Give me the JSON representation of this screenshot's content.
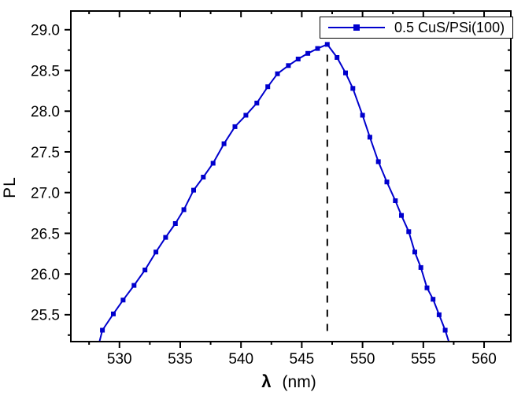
{
  "figure": {
    "background": "#ffffff",
    "axis_color": "#000000"
  },
  "chart_data": {
    "type": "line",
    "title": "",
    "xlabel_symbol": "λ",
    "xlabel_unit": "(nm)",
    "ylabel": "PL",
    "xlim": [
      526.0,
      562.2
    ],
    "ylim": [
      25.17,
      29.23
    ],
    "x_major_ticks": [
      530,
      535,
      540,
      545,
      550,
      555,
      560
    ],
    "x_minor_step": 2.5,
    "y_major_ticks": [
      25.5,
      26.0,
      26.5,
      27.0,
      27.5,
      28.0,
      28.5,
      29.0
    ],
    "y_minor_step": 0.25,
    "grid": false,
    "legend_position": "top-right",
    "series": [
      {
        "name": "0.5 CuS/PSi(100)",
        "color": "#0000CD",
        "marker": "square",
        "marker_size": 6,
        "line_width": 2,
        "x": [
          528.2,
          528.6,
          529.5,
          530.3,
          531.2,
          532.1,
          533.0,
          533.8,
          534.6,
          535.3,
          536.1,
          536.9,
          537.7,
          538.6,
          539.5,
          540.4,
          541.3,
          542.2,
          543.0,
          543.9,
          544.7,
          545.5,
          546.3,
          547.1,
          547.9,
          548.6,
          549.2,
          550.0,
          550.6,
          551.3,
          552.0,
          552.7,
          553.2,
          553.8,
          554.3,
          554.8,
          555.3,
          555.8,
          556.3,
          556.8,
          557.2
        ],
        "y": [
          25.08,
          25.31,
          25.51,
          25.68,
          25.86,
          26.05,
          26.27,
          26.45,
          26.62,
          26.79,
          27.03,
          27.19,
          27.36,
          27.6,
          27.81,
          27.95,
          28.1,
          28.3,
          28.46,
          28.56,
          28.64,
          28.71,
          28.77,
          28.82,
          28.66,
          28.47,
          28.28,
          27.95,
          27.68,
          27.38,
          27.13,
          26.9,
          26.72,
          26.52,
          26.27,
          26.08,
          25.83,
          25.69,
          25.5,
          25.31,
          25.12
        ]
      }
    ],
    "annotations": [
      {
        "type": "dashed-vertical-line",
        "x": 547.1,
        "y_from": 25.3,
        "y_to": 28.76,
        "color": "#000000",
        "meaning": "peak wavelength marker"
      }
    ],
    "peak": {
      "x": 547.1,
      "y": 28.82
    }
  }
}
